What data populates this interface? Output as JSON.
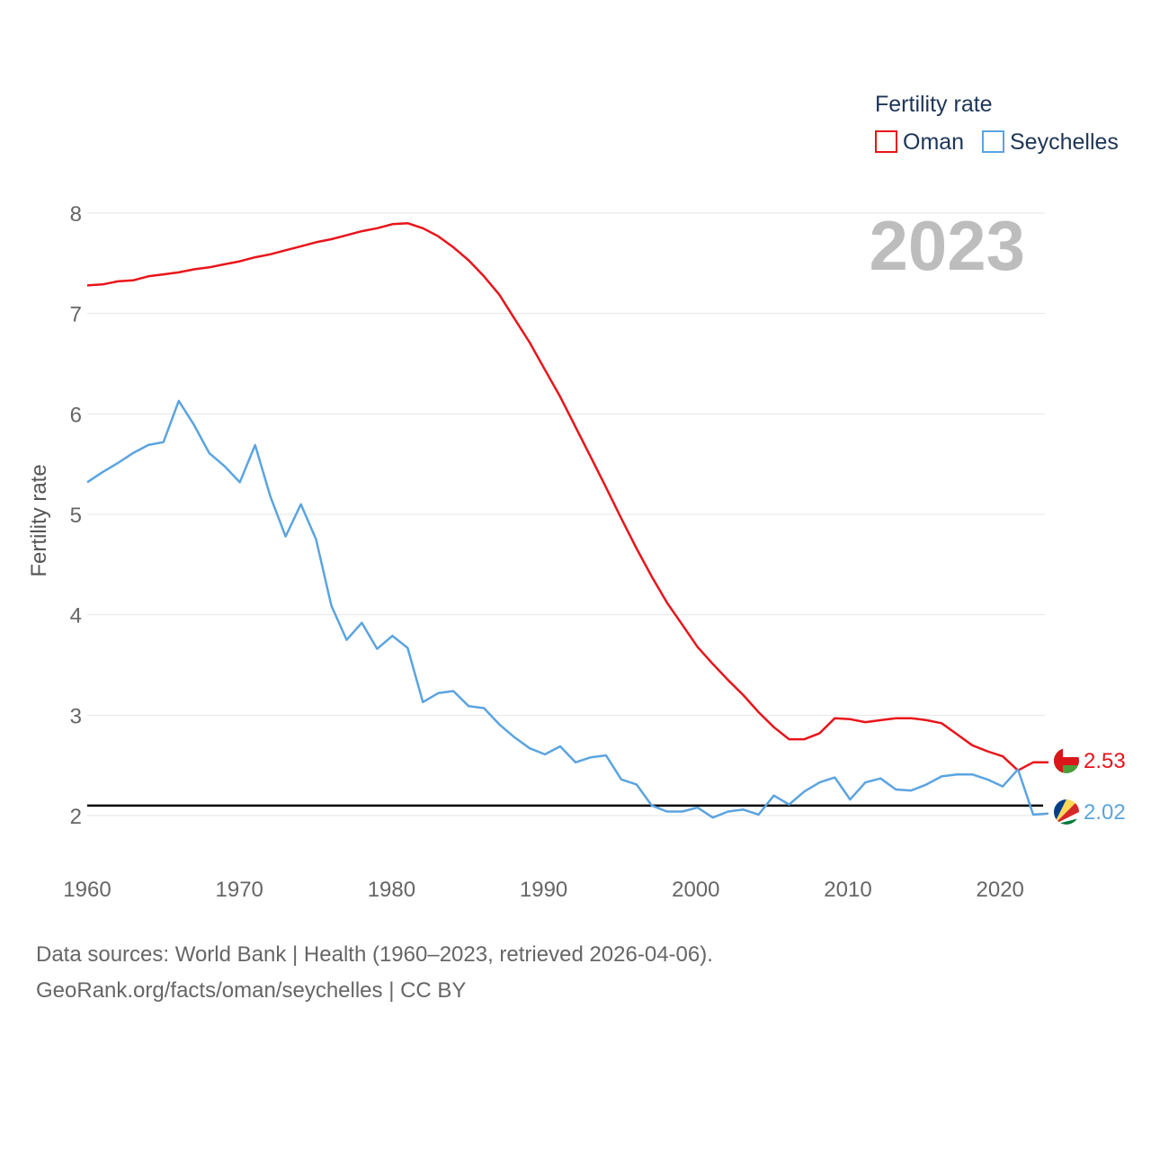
{
  "colors": {
    "oman": "#e8141a",
    "seychelles": "#5ba4e0",
    "grid": "#e6e6e6",
    "reference": "#000000",
    "year": "#bdbdbd"
  },
  "footer": {
    "line1": "Data sources: World Bank | Health (1960–2023, retrieved 2026-04-06).",
    "line2": "GeoRank.org/facts/oman/seychelles | CC BY"
  },
  "chart_data": {
    "type": "line",
    "title": "",
    "xlabel": "",
    "ylabel": "Fertility rate",
    "legend_title": "Fertility rate",
    "legend_position": "top-right",
    "year_label": "2023",
    "xlim": [
      1960,
      2023
    ],
    "ylim": [
      1.5,
      8.2
    ],
    "x_ticks": [
      1960,
      1970,
      1980,
      1990,
      2000,
      2010,
      2020
    ],
    "y_ticks": [
      2,
      3,
      4,
      5,
      6,
      7,
      8
    ],
    "reference_line": 2.1,
    "x": [
      1960,
      1961,
      1962,
      1963,
      1964,
      1965,
      1966,
      1967,
      1968,
      1969,
      1970,
      1971,
      1972,
      1973,
      1974,
      1975,
      1976,
      1977,
      1978,
      1979,
      1980,
      1981,
      1982,
      1983,
      1984,
      1985,
      1986,
      1987,
      1988,
      1989,
      1990,
      1991,
      1992,
      1993,
      1994,
      1995,
      1996,
      1997,
      1998,
      1999,
      2000,
      2001,
      2002,
      2003,
      2004,
      2005,
      2006,
      2007,
      2008,
      2009,
      2010,
      2011,
      2012,
      2013,
      2014,
      2015,
      2016,
      2017,
      2018,
      2019,
      2020,
      2021,
      2022,
      2023
    ],
    "series": [
      {
        "name": "Oman",
        "color": "#e8141a",
        "end_label": "2.53",
        "values": [
          7.28,
          7.29,
          7.32,
          7.33,
          7.37,
          7.39,
          7.41,
          7.44,
          7.46,
          7.49,
          7.52,
          7.56,
          7.59,
          7.63,
          7.67,
          7.71,
          7.74,
          7.78,
          7.82,
          7.85,
          7.89,
          7.9,
          7.85,
          7.77,
          7.66,
          7.53,
          7.37,
          7.19,
          6.95,
          6.71,
          6.44,
          6.17,
          5.87,
          5.57,
          5.27,
          4.96,
          4.66,
          4.38,
          4.12,
          3.9,
          3.68,
          3.51,
          3.35,
          3.2,
          3.03,
          2.88,
          2.76,
          2.76,
          2.82,
          2.97,
          2.96,
          2.93,
          2.95,
          2.97,
          2.97,
          2.95,
          2.92,
          2.81,
          2.7,
          2.64,
          2.59,
          2.45,
          2.53,
          2.53
        ]
      },
      {
        "name": "Seychelles",
        "color": "#5ba4e0",
        "end_label": "2.02",
        "values": [
          5.32,
          5.42,
          5.51,
          5.61,
          5.69,
          5.72,
          6.13,
          5.89,
          5.61,
          5.48,
          5.32,
          5.69,
          5.18,
          4.78,
          5.1,
          4.75,
          4.09,
          3.75,
          3.92,
          3.66,
          3.79,
          3.67,
          3.13,
          3.22,
          3.24,
          3.09,
          3.07,
          2.91,
          2.78,
          2.67,
          2.61,
          2.69,
          2.53,
          2.58,
          2.6,
          2.36,
          2.31,
          2.1,
          2.04,
          2.04,
          2.08,
          1.98,
          2.04,
          2.06,
          2.01,
          2.2,
          2.11,
          2.24,
          2.33,
          2.38,
          2.16,
          2.33,
          2.37,
          2.26,
          2.25,
          2.31,
          2.39,
          2.41,
          2.41,
          2.36,
          2.29,
          2.46,
          2.01,
          2.02
        ]
      }
    ]
  }
}
